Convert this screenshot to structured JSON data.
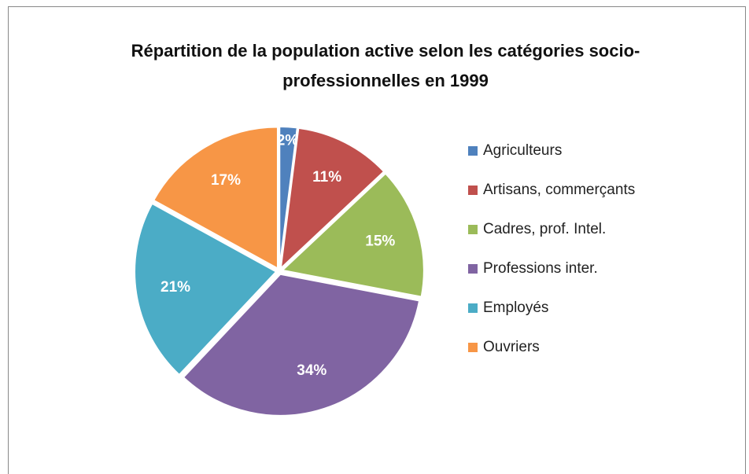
{
  "chart_data": {
    "type": "pie",
    "title": "Répartition de la population active selon les catégories socio-professionnelles en 1999",
    "categories": [
      "Agriculteurs",
      "Artisans, commerçants",
      "Cadres, prof. Intel.",
      "Professions inter.",
      "Employés",
      "Ouvriers"
    ],
    "values": [
      2,
      11,
      15,
      34,
      21,
      17
    ],
    "value_labels": [
      "2%",
      "11%",
      "15%",
      "34%",
      "21%",
      "17%"
    ],
    "colors": [
      "#4f81bd",
      "#c0504d",
      "#9bbb59",
      "#8064a2",
      "#4bacc6",
      "#f79646"
    ],
    "legend": "right"
  }
}
